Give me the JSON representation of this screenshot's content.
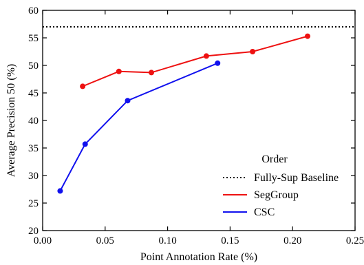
{
  "chart_data": {
    "type": "line",
    "title": "",
    "xlabel": "Point Annotation Rate (%)",
    "ylabel": "Average Precision 50 (%)",
    "xlim": [
      0.0,
      0.25
    ],
    "ylim": [
      20,
      60
    ],
    "xticks": [
      "0.00",
      "0.05",
      "0.10",
      "0.15",
      "0.20",
      "0.25"
    ],
    "yticks": [
      "20",
      "25",
      "30",
      "35",
      "40",
      "45",
      "50",
      "55",
      "60"
    ],
    "grid": false,
    "legend": {
      "title": "Order",
      "position": "lower-right"
    },
    "baseline": {
      "name": "Fully-Sup Baseline",
      "value": 57.0,
      "style": "dotted",
      "color": "#000000"
    },
    "series": [
      {
        "name": "SegGroup",
        "color": "#ee1111",
        "x": [
          0.032,
          0.061,
          0.087,
          0.131,
          0.168,
          0.212
        ],
        "y": [
          46.2,
          48.9,
          48.7,
          51.7,
          52.5,
          55.3
        ]
      },
      {
        "name": "CSC",
        "color": "#1111ee",
        "x": [
          0.014,
          0.034,
          0.068,
          0.14
        ],
        "y": [
          27.2,
          35.7,
          43.6,
          50.4
        ]
      }
    ]
  }
}
